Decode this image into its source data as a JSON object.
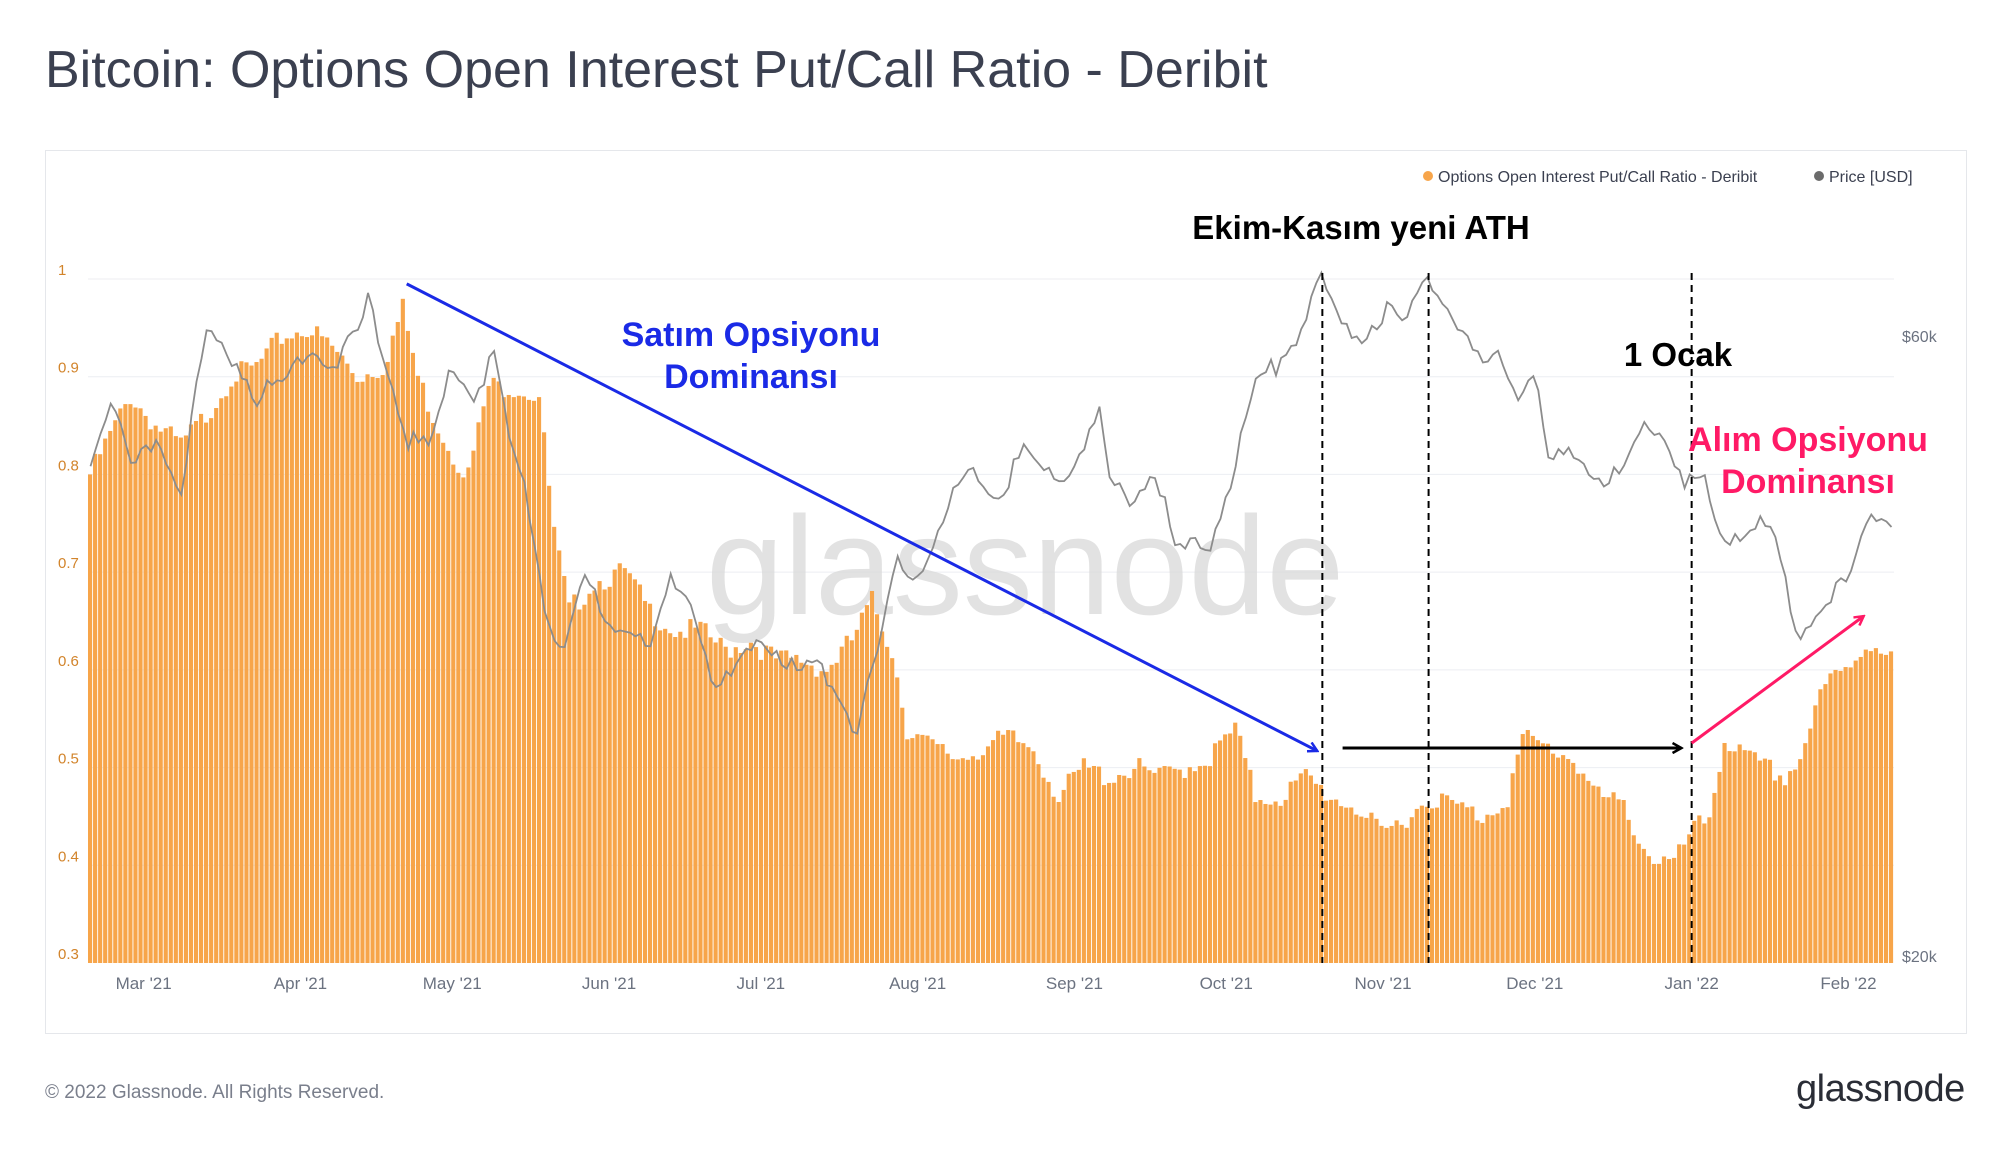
{
  "page": {
    "title": "Bitcoin: Options Open Interest Put/Call Ratio - Deribit",
    "footer_copyright": "© 2022 Glassnode. All Rights Reserved.",
    "footer_logo": "glassnode",
    "watermark": "glassnode"
  },
  "colors": {
    "bar": "#f7a54a",
    "bar_edge": "#f29a37",
    "price": "#8c8c8c",
    "blue_annotation": "#1a2ae6",
    "pink_annotation": "#ff1a66",
    "black": "#000000",
    "grid": "#eceef2",
    "axis_text": "#6b7280",
    "left_axis_text": "#d2842b"
  },
  "chart_data": {
    "type": "bar",
    "title": "Bitcoin: Options Open Interest Put/Call Ratio - Deribit",
    "x_start": "2021-02-18",
    "x_end": "2022-02-10",
    "x_ticks": [
      {
        "date": "2021-03-01",
        "label": "Mar '21"
      },
      {
        "date": "2021-04-01",
        "label": "Apr '21"
      },
      {
        "date": "2021-05-01",
        "label": "May '21"
      },
      {
        "date": "2021-06-01",
        "label": "Jun '21"
      },
      {
        "date": "2021-07-01",
        "label": "Jul '21"
      },
      {
        "date": "2021-08-01",
        "label": "Aug '21"
      },
      {
        "date": "2021-09-01",
        "label": "Sep '21"
      },
      {
        "date": "2021-10-01",
        "label": "Oct '21"
      },
      {
        "date": "2021-11-01",
        "label": "Nov '21"
      },
      {
        "date": "2021-12-01",
        "label": "Dec '21"
      },
      {
        "date": "2022-01-01",
        "label": "Jan '22"
      },
      {
        "date": "2022-02-01",
        "label": "Feb '22"
      }
    ],
    "y_left": {
      "ylim": [
        0.3,
        1.0
      ],
      "ticks": [
        {
          "value": 1.0,
          "label": "1"
        },
        {
          "value": 0.9,
          "label": "0.9"
        },
        {
          "value": 0.8,
          "label": "0.8"
        },
        {
          "value": 0.7,
          "label": "0.7"
        },
        {
          "value": 0.6,
          "label": "0.6"
        },
        {
          "value": 0.5,
          "label": "0.5"
        },
        {
          "value": 0.4,
          "label": "0.4"
        },
        {
          "value": 0.3,
          "label": "0.3"
        }
      ]
    },
    "y_right": {
      "scale": "log",
      "ticks": [
        {
          "value": 60000,
          "label": "$60k"
        },
        {
          "value": 20000,
          "label": "$20k"
        }
      ]
    },
    "legend_position": "top-right",
    "series": [
      {
        "name": "Options Open Interest Put/Call Ratio - Deribit",
        "type": "bar",
        "axis": "left",
        "points": [
          [
            "2021-02-18",
            0.8
          ],
          [
            "2021-02-22",
            0.84
          ],
          [
            "2021-02-26",
            0.88
          ],
          [
            "2021-03-03",
            0.85
          ],
          [
            "2021-03-08",
            0.83
          ],
          [
            "2021-03-13",
            0.86
          ],
          [
            "2021-03-18",
            0.9
          ],
          [
            "2021-03-23",
            0.91
          ],
          [
            "2021-03-28",
            0.94
          ],
          [
            "2021-04-02",
            0.95
          ],
          [
            "2021-04-07",
            0.93
          ],
          [
            "2021-04-12",
            0.9
          ],
          [
            "2021-04-17",
            0.91
          ],
          [
            "2021-04-21",
            0.97
          ],
          [
            "2021-04-24",
            0.9
          ],
          [
            "2021-04-27",
            0.86
          ],
          [
            "2021-05-01",
            0.82
          ],
          [
            "2021-05-04",
            0.8
          ],
          [
            "2021-05-08",
            0.89
          ],
          [
            "2021-05-13",
            0.89
          ],
          [
            "2021-05-18",
            0.88
          ],
          [
            "2021-05-21",
            0.74
          ],
          [
            "2021-05-24",
            0.66
          ],
          [
            "2021-05-29",
            0.69
          ],
          [
            "2021-06-04",
            0.7
          ],
          [
            "2021-06-09",
            0.66
          ],
          [
            "2021-06-14",
            0.64
          ],
          [
            "2021-06-19",
            0.64
          ],
          [
            "2021-06-24",
            0.62
          ],
          [
            "2021-06-29",
            0.63
          ],
          [
            "2021-07-04",
            0.61
          ],
          [
            "2021-07-09",
            0.61
          ],
          [
            "2021-07-14",
            0.6
          ],
          [
            "2021-07-19",
            0.63
          ],
          [
            "2021-07-23",
            0.67
          ],
          [
            "2021-07-27",
            0.62
          ],
          [
            "2021-07-30",
            0.54
          ],
          [
            "2021-08-04",
            0.52
          ],
          [
            "2021-08-09",
            0.51
          ],
          [
            "2021-08-14",
            0.52
          ],
          [
            "2021-08-19",
            0.53
          ],
          [
            "2021-08-24",
            0.52
          ],
          [
            "2021-08-29",
            0.47
          ],
          [
            "2021-09-03",
            0.5
          ],
          [
            "2021-09-08",
            0.49
          ],
          [
            "2021-09-13",
            0.5
          ],
          [
            "2021-09-18",
            0.49
          ],
          [
            "2021-09-23",
            0.5
          ],
          [
            "2021-09-28",
            0.51
          ],
          [
            "2021-10-03",
            0.54
          ],
          [
            "2021-10-07",
            0.47
          ],
          [
            "2021-10-12",
            0.47
          ],
          [
            "2021-10-17",
            0.49
          ],
          [
            "2021-10-22",
            0.47
          ],
          [
            "2021-10-27",
            0.46
          ],
          [
            "2021-11-01",
            0.43
          ],
          [
            "2021-11-06",
            0.45
          ],
          [
            "2021-11-11",
            0.47
          ],
          [
            "2021-11-16",
            0.46
          ],
          [
            "2021-11-21",
            0.45
          ],
          [
            "2021-11-26",
            0.47
          ],
          [
            "2021-11-29",
            0.53
          ],
          [
            "2021-12-04",
            0.52
          ],
          [
            "2021-12-09",
            0.51
          ],
          [
            "2021-12-14",
            0.47
          ],
          [
            "2021-12-19",
            0.46
          ],
          [
            "2021-12-24",
            0.41
          ],
          [
            "2021-12-29",
            0.4
          ],
          [
            "2022-01-01",
            0.43
          ],
          [
            "2022-01-05",
            0.45
          ],
          [
            "2022-01-08",
            0.53
          ],
          [
            "2022-01-12",
            0.51
          ],
          [
            "2022-01-16",
            0.5
          ],
          [
            "2022-01-20",
            0.49
          ],
          [
            "2022-01-23",
            0.51
          ],
          [
            "2022-01-26",
            0.56
          ],
          [
            "2022-01-29",
            0.59
          ],
          [
            "2022-02-01",
            0.6
          ],
          [
            "2022-02-04",
            0.62
          ],
          [
            "2022-02-07",
            0.63
          ],
          [
            "2022-02-10",
            0.61
          ]
        ]
      },
      {
        "name": "Price [USD]",
        "type": "line",
        "axis": "right",
        "points": [
          [
            "2021-02-18",
            48000
          ],
          [
            "2021-02-22",
            54000
          ],
          [
            "2021-02-26",
            47000
          ],
          [
            "2021-03-03",
            50000
          ],
          [
            "2021-03-08",
            46000
          ],
          [
            "2021-03-13",
            60000
          ],
          [
            "2021-03-18",
            58000
          ],
          [
            "2021-03-23",
            54000
          ],
          [
            "2021-03-28",
            55000
          ],
          [
            "2021-04-02",
            59000
          ],
          [
            "2021-04-07",
            57000
          ],
          [
            "2021-04-12",
            60000
          ],
          [
            "2021-04-14",
            64000
          ],
          [
            "2021-04-18",
            56000
          ],
          [
            "2021-04-22",
            50000
          ],
          [
            "2021-04-26",
            49000
          ],
          [
            "2021-05-01",
            57000
          ],
          [
            "2021-05-05",
            54000
          ],
          [
            "2021-05-09",
            58000
          ],
          [
            "2021-05-12",
            50000
          ],
          [
            "2021-05-16",
            44000
          ],
          [
            "2021-05-19",
            37000
          ],
          [
            "2021-05-23",
            34000
          ],
          [
            "2021-05-27",
            39000
          ],
          [
            "2021-06-01",
            36000
          ],
          [
            "2021-06-05",
            36000
          ],
          [
            "2021-06-09",
            34000
          ],
          [
            "2021-06-13",
            39000
          ],
          [
            "2021-06-17",
            38000
          ],
          [
            "2021-06-22",
            32000
          ],
          [
            "2021-06-26",
            33000
          ],
          [
            "2021-06-30",
            35000
          ],
          [
            "2021-07-04",
            34500
          ],
          [
            "2021-07-08",
            33000
          ],
          [
            "2021-07-12",
            33500
          ],
          [
            "2021-07-16",
            32000
          ],
          [
            "2021-07-20",
            29800
          ],
          [
            "2021-07-24",
            34000
          ],
          [
            "2021-07-28",
            40000
          ],
          [
            "2021-08-01",
            39500
          ],
          [
            "2021-08-05",
            42000
          ],
          [
            "2021-08-09",
            46000
          ],
          [
            "2021-08-13",
            47000
          ],
          [
            "2021-08-17",
            45000
          ],
          [
            "2021-08-22",
            49000
          ],
          [
            "2021-08-26",
            47000
          ],
          [
            "2021-08-31",
            47000
          ],
          [
            "2021-09-06",
            52000
          ],
          [
            "2021-09-08",
            46000
          ],
          [
            "2021-09-13",
            45000
          ],
          [
            "2021-09-17",
            47500
          ],
          [
            "2021-09-21",
            41000
          ],
          [
            "2021-09-28",
            41500
          ],
          [
            "2021-10-03",
            48000
          ],
          [
            "2021-10-07",
            55000
          ],
          [
            "2021-10-11",
            57000
          ],
          [
            "2021-10-16",
            61000
          ],
          [
            "2021-10-20",
            66000
          ],
          [
            "2021-10-24",
            61000
          ],
          [
            "2021-10-28",
            60000
          ],
          [
            "2021-11-02",
            63000
          ],
          [
            "2021-11-06",
            61000
          ],
          [
            "2021-11-10",
            67500
          ],
          [
            "2021-11-13",
            64000
          ],
          [
            "2021-11-17",
            60000
          ],
          [
            "2021-11-21",
            57000
          ],
          [
            "2021-11-25",
            58000
          ],
          [
            "2021-11-28",
            54000
          ],
          [
            "2021-12-01",
            57000
          ],
          [
            "2021-12-04",
            48000
          ],
          [
            "2021-12-10",
            48500
          ],
          [
            "2021-12-14",
            47000
          ],
          [
            "2021-12-18",
            46500
          ],
          [
            "2021-12-23",
            51000
          ],
          [
            "2021-12-27",
            50500
          ],
          [
            "2021-12-31",
            46500
          ],
          [
            "2022-01-04",
            46000
          ],
          [
            "2022-01-07",
            42000
          ],
          [
            "2022-01-11",
            42500
          ],
          [
            "2022-01-15",
            43000
          ],
          [
            "2022-01-18",
            42000
          ],
          [
            "2022-01-22",
            35000
          ],
          [
            "2022-01-26",
            37000
          ],
          [
            "2022-01-29",
            38000
          ],
          [
            "2022-02-01",
            38500
          ],
          [
            "2022-02-04",
            41500
          ],
          [
            "2022-02-07",
            44000
          ],
          [
            "2022-02-10",
            43500
          ]
        ]
      }
    ],
    "annotations": [
      {
        "id": "put-dominance",
        "lines": [
          "Satım Opsiyonu",
          "Dominansı"
        ]
      },
      {
        "id": "ath-label",
        "lines": [
          "Ekim-Kasım yeni ATH"
        ]
      },
      {
        "id": "jan1-label",
        "lines": [
          "1 Ocak"
        ]
      },
      {
        "id": "call-dominance",
        "lines": [
          "Alım Opsiyonu",
          "Dominansı"
        ]
      }
    ],
    "vertical_markers": [
      "2021-10-20",
      "2021-11-10",
      "2022-01-01"
    ],
    "arrows": [
      {
        "name": "blue-trend-arrow",
        "from": [
          "2021-04-22",
          0.995
        ],
        "to": [
          "2021-10-19",
          0.517
        ],
        "color": "blue_annotation"
      },
      {
        "name": "black-flat-arrow",
        "from": [
          "2021-10-24",
          0.52
        ],
        "to": [
          "2021-12-30",
          0.52
        ],
        "color": "black"
      },
      {
        "name": "pink-rising-arrow",
        "from": [
          "2022-01-01",
          0.525
        ],
        "to": [
          "2022-02-04",
          0.655
        ],
        "color": "pink_annotation"
      }
    ]
  }
}
